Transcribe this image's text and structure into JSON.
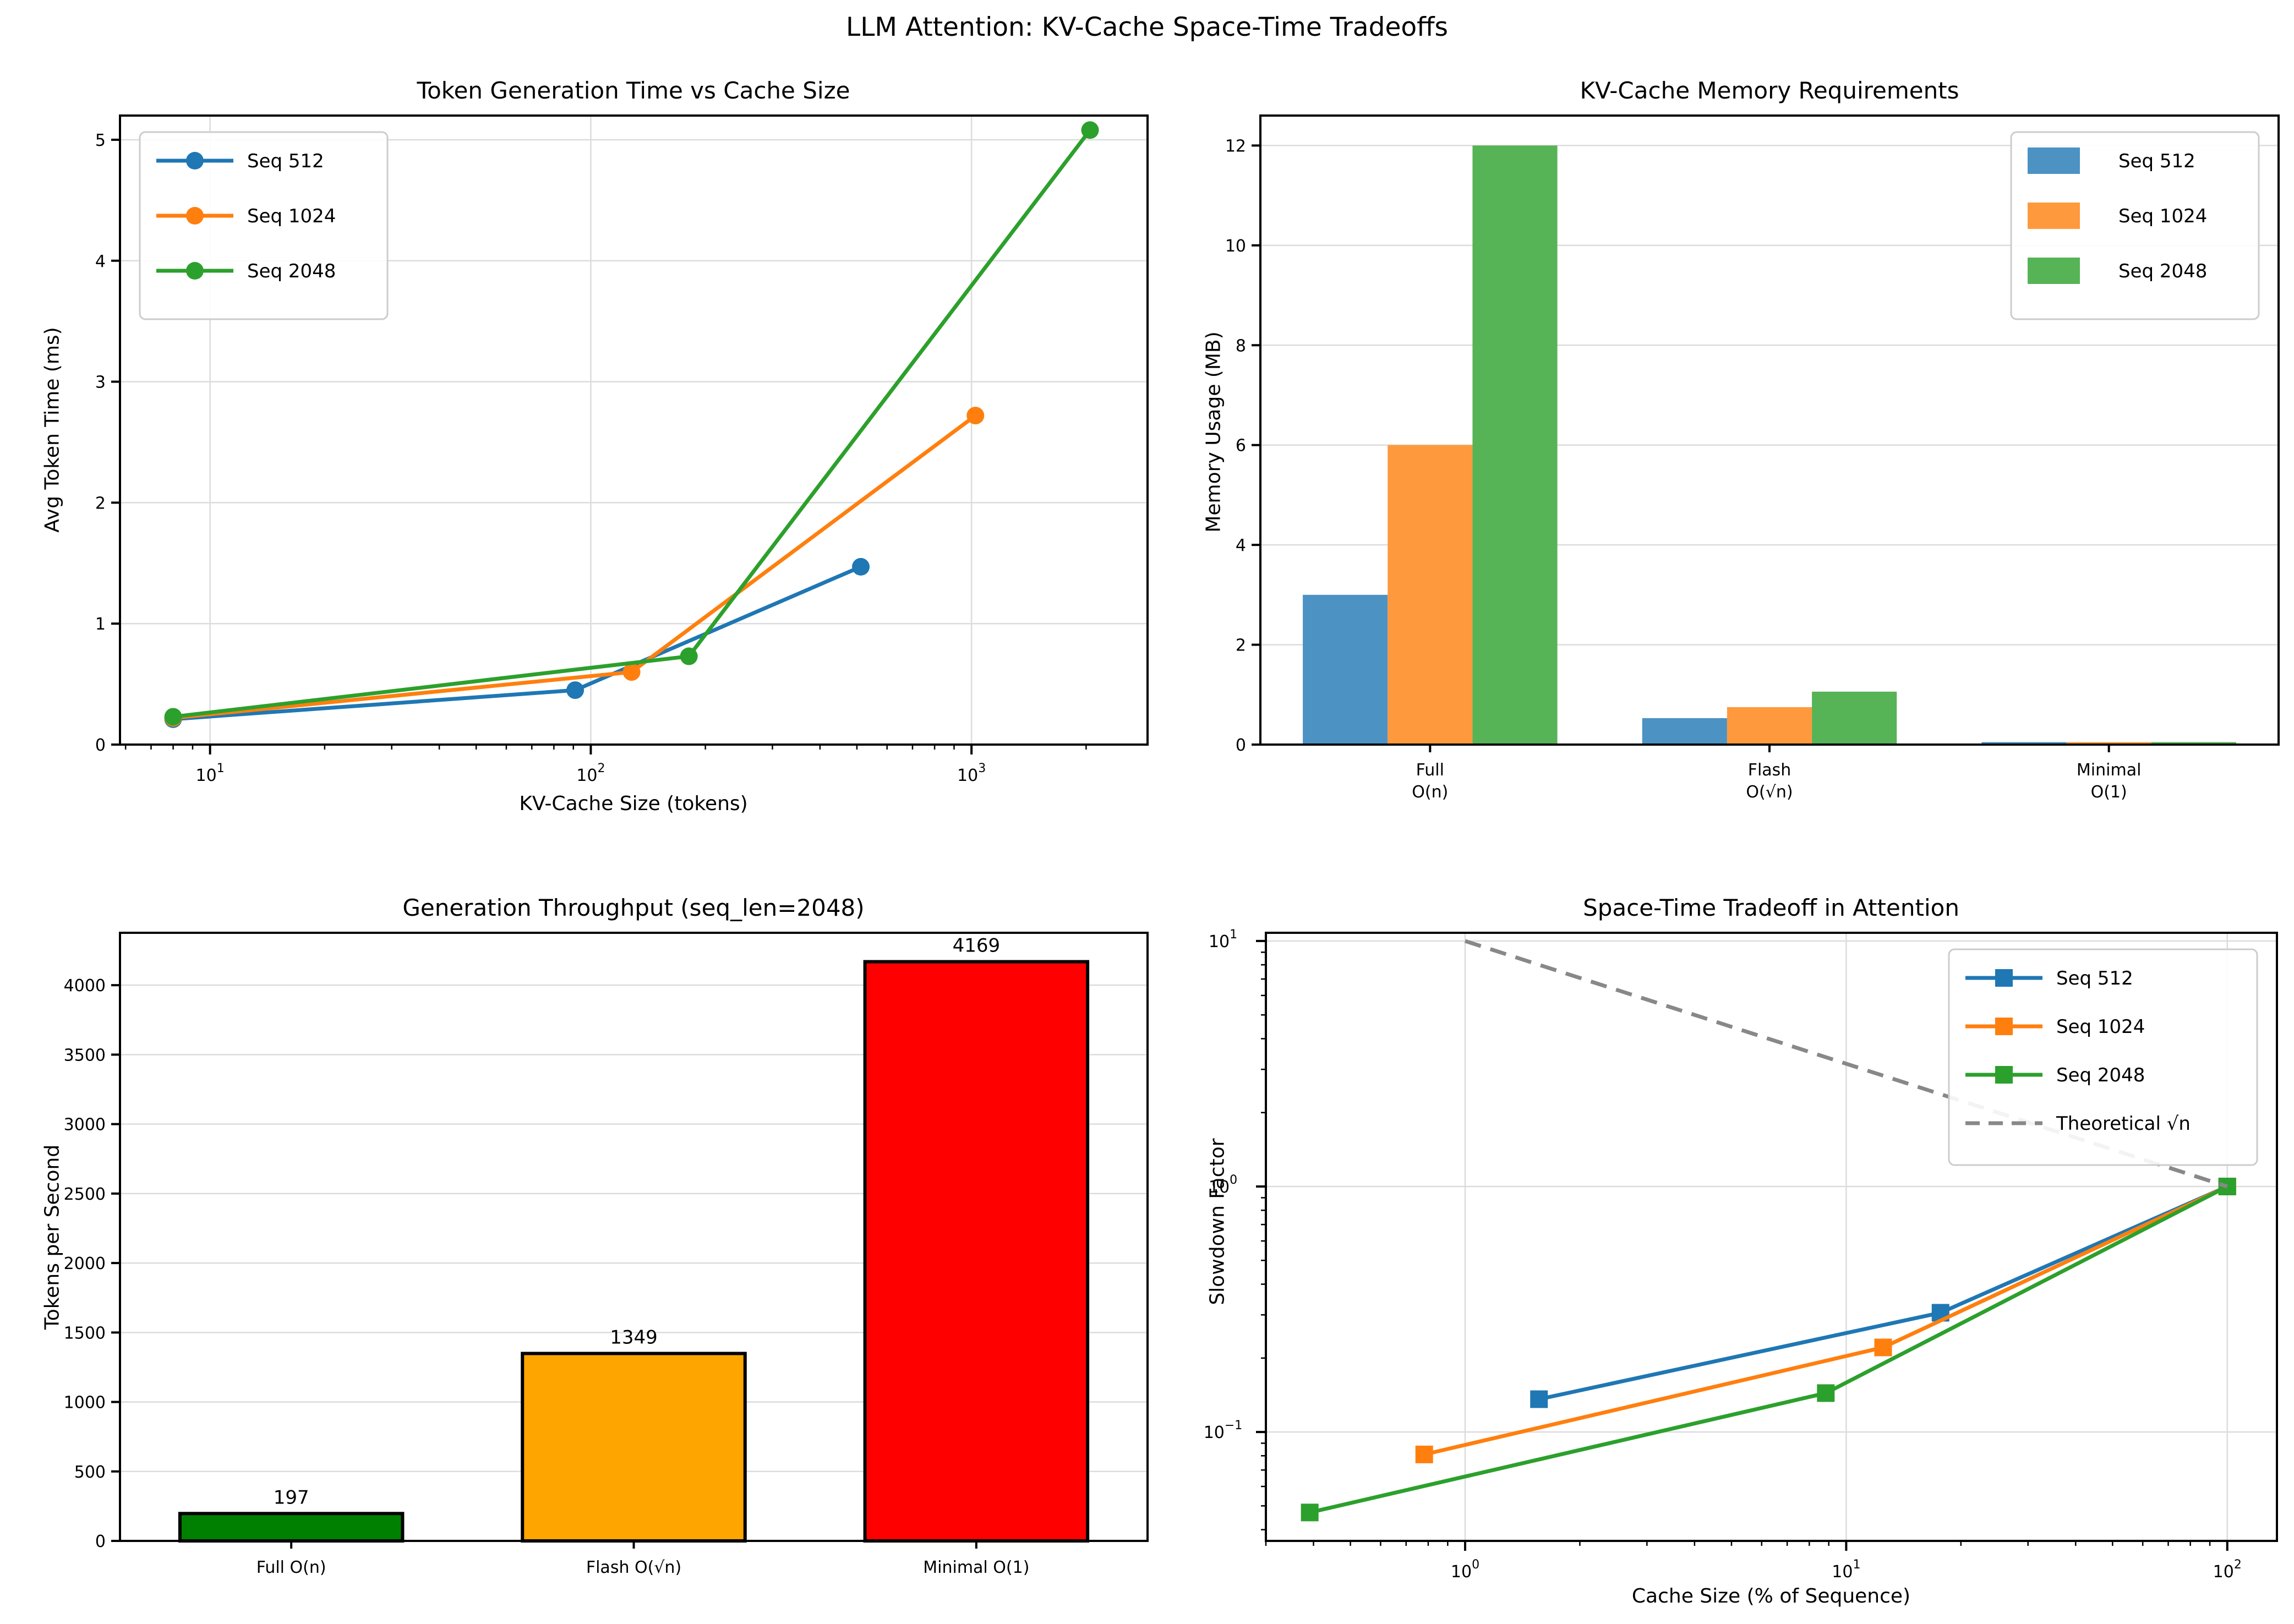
{
  "suptitle": "LLM Attention: KV-Cache Space-Time Tradeoffs",
  "chart_data": [
    {
      "id": "token-time",
      "type": "line",
      "title": "Token Generation Time vs Cache Size",
      "xlabel": "KV-Cache Size (tokens)",
      "ylabel": "Avg Token Time (ms)",
      "xscale": "log",
      "yscale": "linear",
      "xlim": [
        5.8,
        2900
      ],
      "ylim": [
        0,
        5.2
      ],
      "xticks_exp": [
        1,
        2,
        3
      ],
      "yticks": [
        0,
        1,
        2,
        3,
        4,
        5
      ],
      "grid": true,
      "legend_pos": "top-left",
      "marker": "circle",
      "series": [
        {
          "name": "Seq 512",
          "color": "#1f77b4",
          "points": [
            [
              8,
              0.21
            ],
            [
              91,
              0.45
            ],
            [
              512,
              1.47
            ]
          ]
        },
        {
          "name": "Seq 1024",
          "color": "#ff7f0e",
          "points": [
            [
              8,
              0.22
            ],
            [
              128,
              0.6
            ],
            [
              1024,
              2.72
            ]
          ]
        },
        {
          "name": "Seq 2048",
          "color": "#2ca02c",
          "points": [
            [
              8,
              0.23
            ],
            [
              181,
              0.73
            ],
            [
              2048,
              5.08
            ]
          ]
        }
      ]
    },
    {
      "id": "memory",
      "type": "groupbar",
      "title": "KV-Cache Memory Requirements",
      "xlabel": "",
      "ylabel": "Memory Usage (MB)",
      "ylim": [
        0,
        12.6
      ],
      "yticks": [
        0,
        2,
        4,
        6,
        8,
        10,
        12
      ],
      "grid": true,
      "legend_pos": "top-right",
      "categories": [
        [
          "Full",
          "O(n)"
        ],
        [
          "Flash",
          "O(√n)"
        ],
        [
          "Minimal",
          "O(1)"
        ]
      ],
      "series": [
        {
          "name": "Seq 512",
          "color": "#4c92c3",
          "values": [
            3,
            0.53,
            0.05
          ]
        },
        {
          "name": "Seq 1024",
          "color": "#ff993e",
          "values": [
            6,
            0.75,
            0.05
          ]
        },
        {
          "name": "Seq 2048",
          "color": "#56b356",
          "values": [
            12,
            1.06,
            0.05
          ]
        }
      ]
    },
    {
      "id": "throughput",
      "type": "bar",
      "title": "Generation Throughput (seq_len=2048)",
      "xlabel": "",
      "ylabel": "Tokens per Second",
      "ylim": [
        0,
        4377
      ],
      "yticks": [
        0,
        500,
        1000,
        1500,
        2000,
        2500,
        3000,
        3500,
        4000
      ],
      "grid": true,
      "categories": [
        "Full O(n)",
        "Flash O(√n)",
        "Minimal O(1)"
      ],
      "values": [
        197,
        1349,
        4169
      ],
      "bar_labels": [
        "197",
        "1349",
        "4169"
      ],
      "bar_colors": [
        "#008000",
        "#ffa500",
        "#ff0000"
      ],
      "bar_edge_color": "#000000"
    },
    {
      "id": "tradeoff",
      "type": "line",
      "title": "Space-Time Tradeoff in Attention",
      "xlabel": "Cache Size (% of Sequence)",
      "ylabel": "Slowdown Factor",
      "xscale": "log",
      "yscale": "log",
      "xlim": [
        0.3,
        135
      ],
      "ylim": [
        0.036,
        10.8
      ],
      "xticks_exp": [
        0,
        1,
        2
      ],
      "yticks_exp": [
        -1,
        0,
        1
      ],
      "grid": true,
      "legend_pos": "top-right",
      "marker": "square",
      "series": [
        {
          "name": "Seq 512",
          "color": "#1f77b4",
          "points": [
            [
              1.5625,
              0.136
            ],
            [
              17.68,
              0.306
            ],
            [
              100,
              1.0
            ]
          ]
        },
        {
          "name": "Seq 1024",
          "color": "#ff7f0e",
          "points": [
            [
              0.781,
              0.081
            ],
            [
              12.5,
              0.221
            ],
            [
              100,
              1.0
            ]
          ]
        },
        {
          "name": "Seq 2048",
          "color": "#2ca02c",
          "points": [
            [
              0.391,
              0.047
            ],
            [
              8.84,
              0.144
            ],
            [
              100,
              1.0
            ]
          ]
        },
        {
          "name": "Theoretical √n",
          "color": "#888888",
          "dashed": true,
          "nomarker": true,
          "points": [
            [
              1,
              10
            ],
            [
              100,
              1
            ]
          ]
        }
      ]
    }
  ]
}
